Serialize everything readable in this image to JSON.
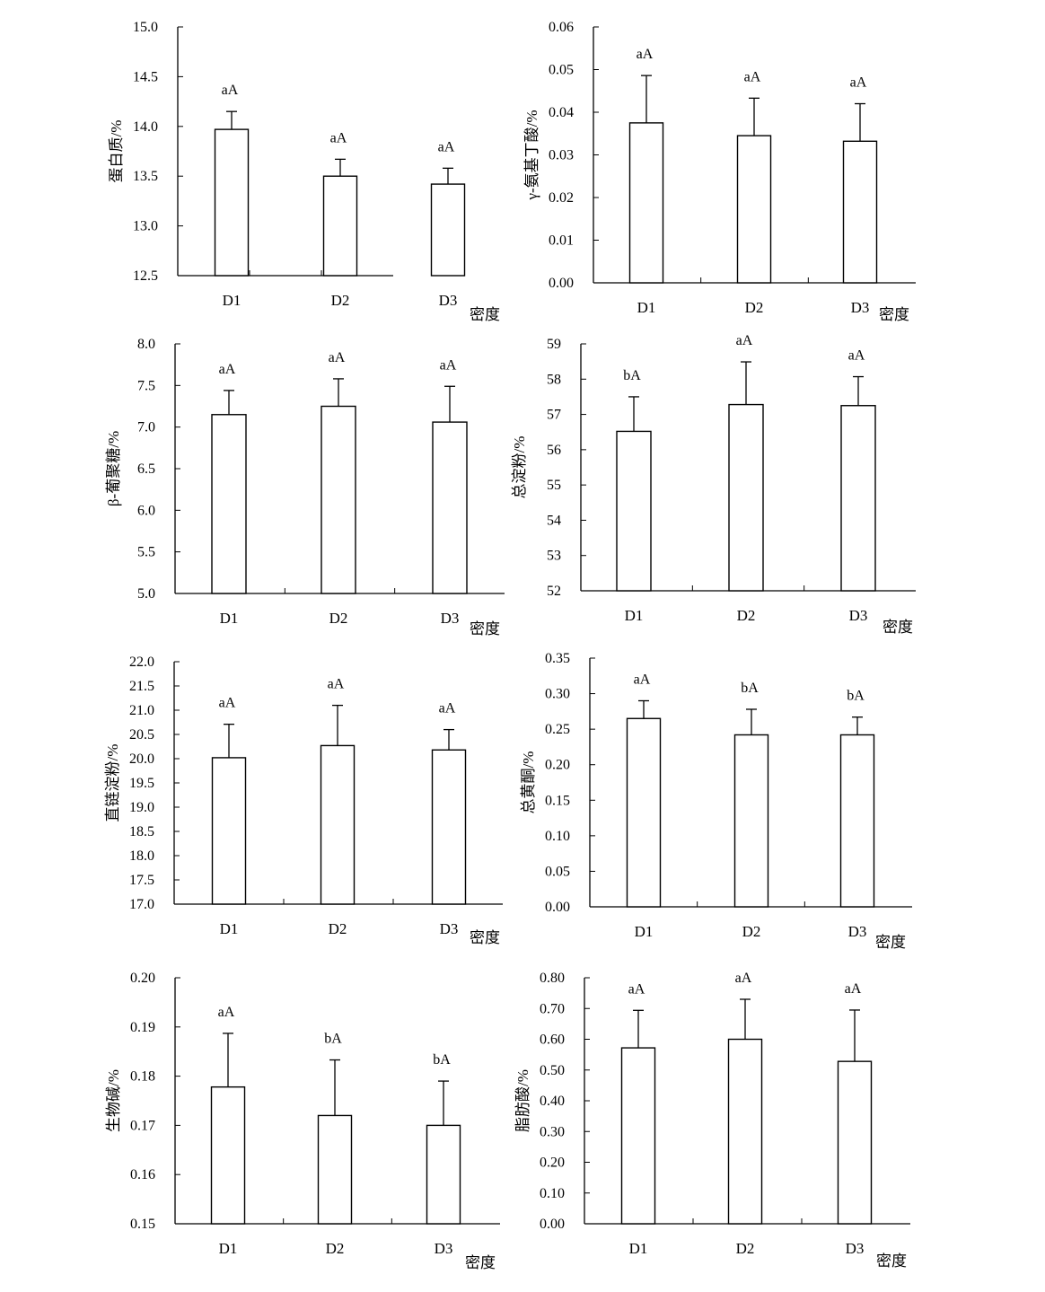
{
  "colors": {
    "bar_fill": "#ffffff",
    "stroke": "#000000",
    "background": "#ffffff"
  },
  "chart_data": [
    {
      "type": "bar",
      "ylabel": "蛋白质/%",
      "xlabel": "密度",
      "categories": [
        "D1",
        "D2",
        "D3"
      ],
      "values": [
        13.97,
        13.5,
        13.42
      ],
      "errors": [
        0.18,
        0.17,
        0.16
      ],
      "significance": [
        "aA",
        "aA",
        "aA"
      ],
      "ylim": [
        12.5,
        15.0
      ],
      "yticks": [
        "12.5",
        "13.0",
        "13.5",
        "14.0",
        "14.5",
        "15.0"
      ]
    },
    {
      "type": "bar",
      "ylabel": "γ-氨基丁酸/%",
      "xlabel": "密度",
      "categories": [
        "D1",
        "D2",
        "D3"
      ],
      "values": [
        0.0375,
        0.0345,
        0.0332
      ],
      "errors": [
        0.0111,
        0.0088,
        0.0088
      ],
      "significance": [
        "aA",
        "aA",
        "aA"
      ],
      "ylim": [
        0.0,
        0.06
      ],
      "yticks": [
        "0.00",
        "0.01",
        "0.02",
        "0.03",
        "0.04",
        "0.05",
        "0.06"
      ]
    },
    {
      "type": "bar",
      "ylabel": "β-葡聚糖/%",
      "xlabel": "密度",
      "categories": [
        "D1",
        "D2",
        "D3"
      ],
      "values": [
        7.15,
        7.25,
        7.06
      ],
      "errors": [
        0.29,
        0.33,
        0.43
      ],
      "significance": [
        "aA",
        "aA",
        "aA"
      ],
      "ylim": [
        5.0,
        8.0
      ],
      "yticks": [
        "5.0",
        "5.5",
        "6.0",
        "6.5",
        "7.0",
        "7.5",
        "8.0"
      ]
    },
    {
      "type": "bar",
      "ylabel": "总淀粉/%",
      "xlabel": "密度",
      "categories": [
        "D1",
        "D2",
        "D3"
      ],
      "values": [
        56.52,
        57.28,
        57.25
      ],
      "errors": [
        0.98,
        1.21,
        0.82
      ],
      "significance": [
        "bA",
        "aA",
        "aA"
      ],
      "ylim": [
        52,
        59
      ],
      "yticks": [
        "52",
        "53",
        "54",
        "55",
        "56",
        "57",
        "58",
        "59"
      ]
    },
    {
      "type": "bar",
      "ylabel": "直链淀粉/%",
      "xlabel": "密度",
      "categories": [
        "D1",
        "D2",
        "D3"
      ],
      "values": [
        20.02,
        20.27,
        20.18
      ],
      "errors": [
        0.69,
        0.83,
        0.42
      ],
      "significance": [
        "aA",
        "aA",
        "aA"
      ],
      "ylim": [
        17.0,
        22.0
      ],
      "yticks": [
        "17.0",
        "17.5",
        "18.0",
        "18.5",
        "19.0",
        "19.5",
        "20.0",
        "20.5",
        "21.0",
        "21.5",
        "22.0"
      ]
    },
    {
      "type": "bar",
      "ylabel": "总黄酮/%",
      "xlabel": "密度",
      "categories": [
        "D1",
        "D2",
        "D3"
      ],
      "values": [
        0.265,
        0.242,
        0.242
      ],
      "errors": [
        0.025,
        0.036,
        0.025
      ],
      "significance": [
        "aA",
        "bA",
        "bA"
      ],
      "ylim": [
        0.0,
        0.35
      ],
      "yticks": [
        "0.00",
        "0.05",
        "0.10",
        "0.15",
        "0.20",
        "0.25",
        "0.30",
        "0.35"
      ]
    },
    {
      "type": "bar",
      "ylabel": "生物碱/%",
      "xlabel": "密度",
      "categories": [
        "D1",
        "D2",
        "D3"
      ],
      "values": [
        0.1778,
        0.172,
        0.17
      ],
      "errors": [
        0.0109,
        0.0113,
        0.009
      ],
      "significance": [
        "aA",
        "bA",
        "bA"
      ],
      "ylim": [
        0.15,
        0.2
      ],
      "yticks": [
        "0.15",
        "0.16",
        "0.17",
        "0.18",
        "0.19",
        "0.20"
      ]
    },
    {
      "type": "bar",
      "ylabel": "脂肪酸/%",
      "xlabel": "密度",
      "categories": [
        "D1",
        "D2",
        "D3"
      ],
      "values": [
        0.572,
        0.6,
        0.528
      ],
      "errors": [
        0.122,
        0.13,
        0.167
      ],
      "significance": [
        "aA",
        "aA",
        "aA"
      ],
      "ylim": [
        0.0,
        0.8
      ],
      "yticks": [
        "0.00",
        "0.10",
        "0.20",
        "0.30",
        "0.40",
        "0.50",
        "0.60",
        "0.70",
        "0.80"
      ]
    }
  ]
}
